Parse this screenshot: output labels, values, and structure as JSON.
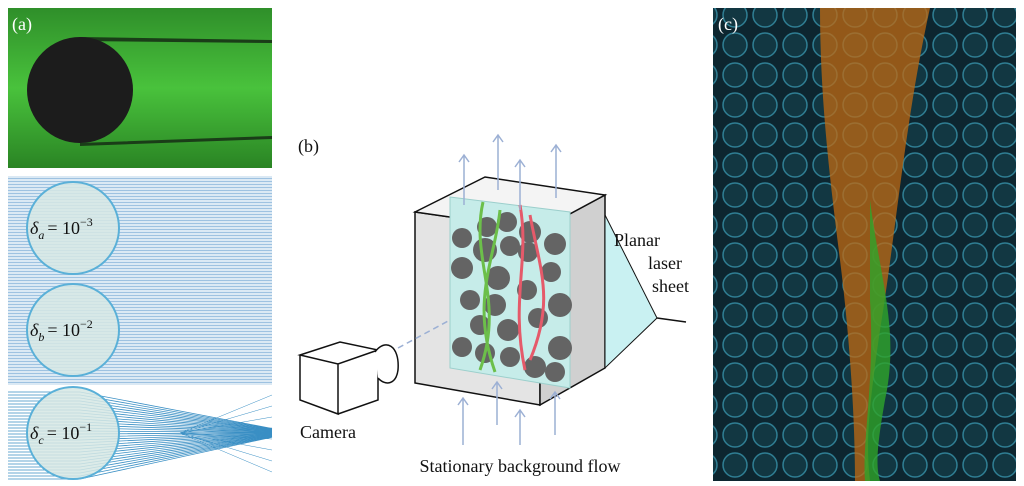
{
  "panel_a": {
    "label": "(a)"
  },
  "panel_deltas": {
    "symbol": "δ",
    "base": "= 10",
    "items": [
      {
        "sub": "a",
        "exp": "−3"
      },
      {
        "sub": "b",
        "exp": "−2"
      },
      {
        "sub": "c",
        "exp": "−1"
      }
    ]
  },
  "panel_b": {
    "label": "(b)",
    "laser": [
      "Planar",
      "laser",
      "sheet"
    ],
    "camera": "Camera",
    "flow": "Stationary background flow"
  },
  "panel_c": {
    "label": "(c)"
  }
}
